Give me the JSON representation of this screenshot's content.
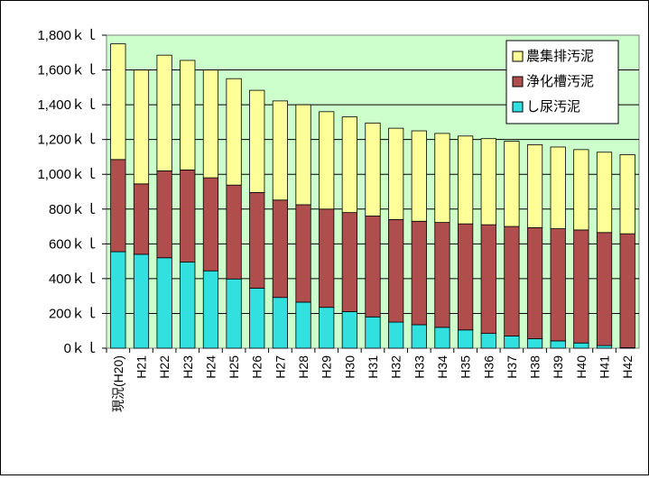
{
  "chart_data": {
    "type": "bar",
    "stacked": true,
    "categories": [
      "現況(H20)",
      "H21",
      "H22",
      "H23",
      "H24",
      "H25",
      "H26",
      "H27",
      "H28",
      "H29",
      "H30",
      "H31",
      "H32",
      "H33",
      "H34",
      "H35",
      "H36",
      "H37",
      "H38",
      "H39",
      "H40",
      "H41",
      "H42"
    ],
    "series": [
      {
        "name": "し尿汚泥",
        "color": "#33e0e0",
        "values": [
          555,
          540,
          520,
          495,
          445,
          398,
          345,
          292,
          265,
          235,
          210,
          180,
          150,
          135,
          120,
          105,
          85,
          70,
          55,
          42,
          30,
          15,
          3
        ]
      },
      {
        "name": "浄化槽汚泥",
        "color": "#b04e4e",
        "values": [
          530,
          405,
          500,
          530,
          535,
          540,
          550,
          560,
          560,
          565,
          570,
          580,
          590,
          595,
          603,
          610,
          625,
          630,
          638,
          645,
          650,
          650,
          655
        ]
      },
      {
        "name": "農集排汚泥",
        "color": "#ffff99",
        "values": [
          665,
          655,
          665,
          630,
          620,
          612,
          588,
          570,
          575,
          560,
          550,
          535,
          525,
          520,
          512,
          505,
          495,
          490,
          477,
          470,
          462,
          462,
          455
        ]
      }
    ],
    "ytick_labels": [
      "0ｋｌ",
      "200ｋｌ",
      "400ｋｌ",
      "600ｋｌ",
      "800ｋｌ",
      "1,000ｋｌ",
      "1,200ｋｌ",
      "1,400ｋｌ",
      "1,600ｋｌ",
      "1,800ｋｌ"
    ],
    "ylim": [
      0,
      1800
    ],
    "ytick_step": 200,
    "grid": true,
    "plot_background": "#ccffcc",
    "legend_position": "top-right",
    "title": "",
    "xlabel": "",
    "ylabel": ""
  }
}
